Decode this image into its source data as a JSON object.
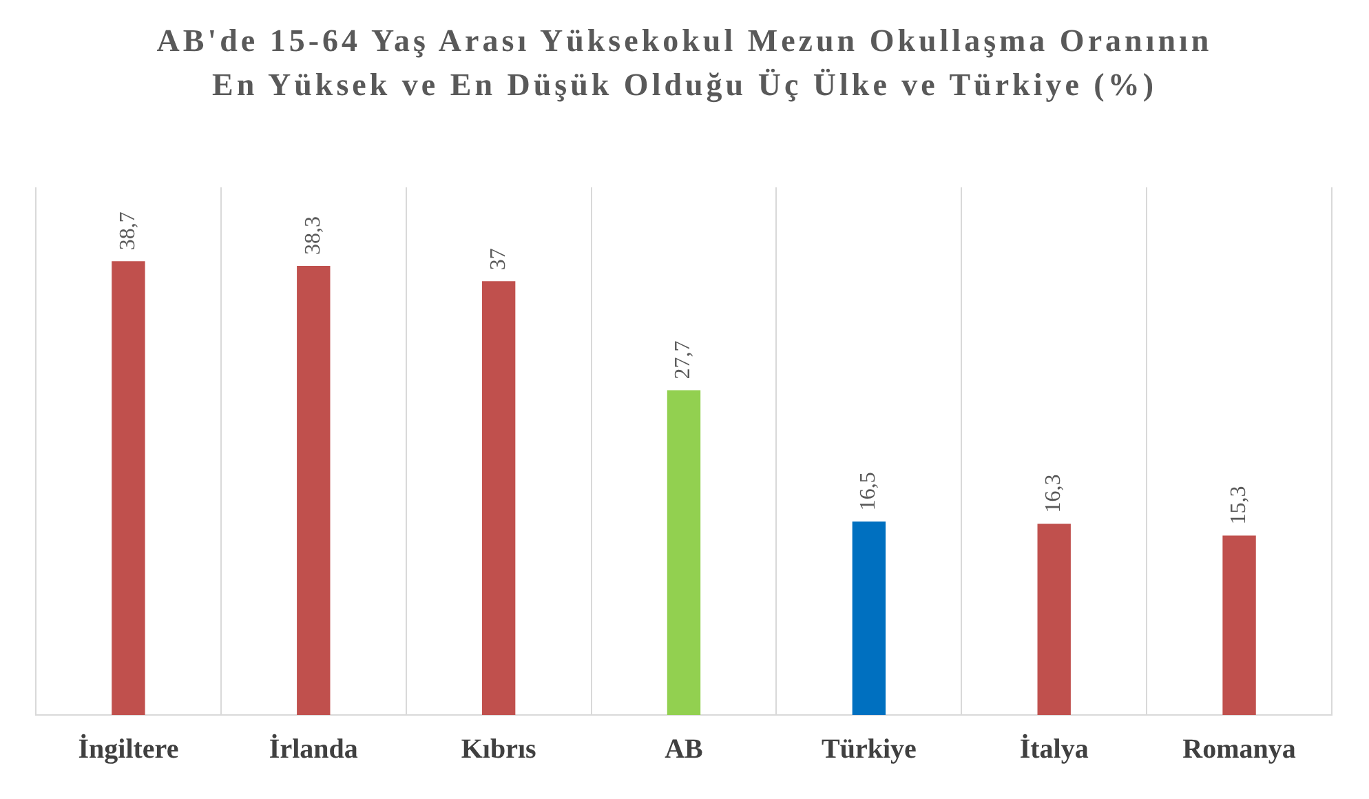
{
  "chart_data": {
    "type": "bar",
    "title": "AB'de 15-64 Yaş Arası Yüksekokul Mezun Okullaşma Oranının En Yüksek ve En Düşük Olduğu Üç Ülke ve Türkiye (%)",
    "categories": [
      "İngiltere",
      "İrlanda",
      "Kıbrıs",
      "AB",
      "Türkiye",
      "İtalya",
      "Romanya"
    ],
    "values": [
      38.7,
      38.3,
      37,
      27.7,
      16.5,
      16.3,
      15.3
    ],
    "colors": [
      "#c0504d",
      "#c0504d",
      "#c0504d",
      "#92d050",
      "#0070c0",
      "#c0504d",
      "#c0504d"
    ],
    "value_labels": [
      "38,7",
      "38,3",
      "37",
      "27,7",
      "16,5",
      "16,3",
      "15,3"
    ],
    "ylim": [
      0,
      45
    ],
    "grid": "x"
  }
}
